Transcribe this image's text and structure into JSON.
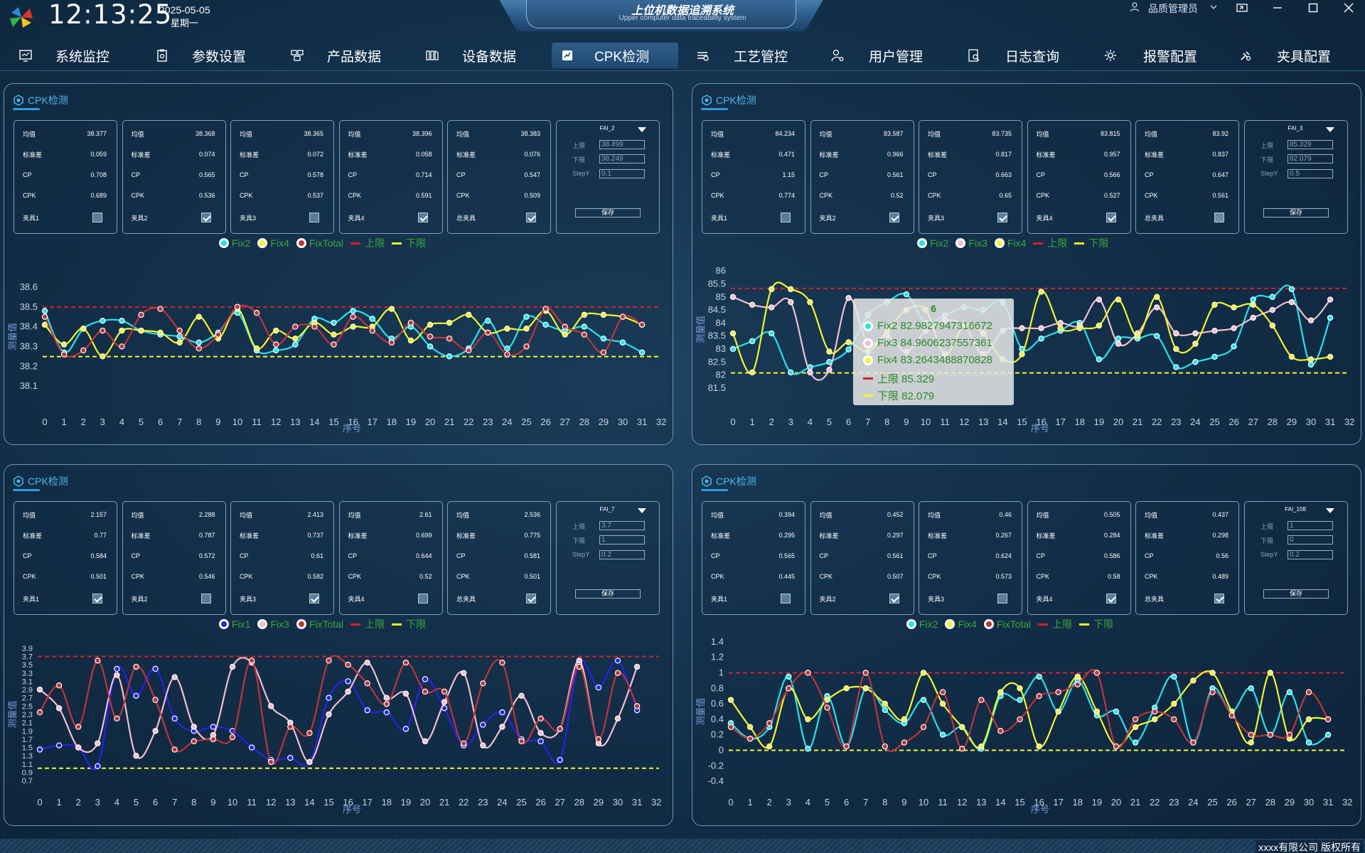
{
  "header": {
    "time": "12:13:25",
    "date": "2025-05-05",
    "weekday": "星期一",
    "title": "上位机数据追溯系统",
    "subtitle": "Upper computer data traceability system",
    "user": "品质管理员"
  },
  "nav": {
    "tabs": [
      {
        "label": "系统监控",
        "icon": "monitor-icon"
      },
      {
        "label": "参数设置",
        "icon": "clipboard-icon"
      },
      {
        "label": "产品数据",
        "icon": "product-icon"
      },
      {
        "label": "设备数据",
        "icon": "device-icon"
      },
      {
        "label": "CPK检测",
        "icon": "cpk-icon",
        "active": true
      },
      {
        "label": "工艺管控",
        "icon": "process-icon"
      },
      {
        "label": "用户管理",
        "icon": "user-settings-icon"
      },
      {
        "label": "日志查询",
        "icon": "log-search-icon"
      },
      {
        "label": "报警配置",
        "icon": "alarm-gear-icon"
      },
      {
        "label": "夹具配置",
        "icon": "fixture-icon"
      }
    ]
  },
  "labels": {
    "mean": "均值",
    "std": "标准差",
    "cp": "CP",
    "cpk": "CPK",
    "upper": "上限",
    "lower": "下限",
    "stepy": "StepY",
    "save": "保存",
    "xlabel": "序号",
    "ylabel": "测量值"
  },
  "footer": {
    "copyright": "xxxx有限公司 版权所有"
  },
  "panels": [
    {
      "title": "CPK检测",
      "stats": [
        {
          "mean": "38.377",
          "std": "0.059",
          "cp": "0.708",
          "cpk": "0.689",
          "fixture": "夹具1",
          "checked": false
        },
        {
          "mean": "38.368",
          "std": "0.074",
          "cp": "0.565",
          "cpk": "0.536",
          "fixture": "夹具2",
          "checked": true
        },
        {
          "mean": "38.365",
          "std": "0.072",
          "cp": "0.578",
          "cpk": "0.537",
          "fixture": "夹具3",
          "checked": false
        },
        {
          "mean": "38.396",
          "std": "0.058",
          "cp": "0.714",
          "cpk": "0.591",
          "fixture": "夹具4",
          "checked": true
        },
        {
          "mean": "38.383",
          "std": "0.076",
          "cp": "0.547",
          "cpk": "0.509",
          "fixture": "总夹具",
          "checked": true
        }
      ],
      "config": {
        "fai": "FAI_2",
        "upper": "38.499",
        "lower": "38.249",
        "stepy": "0.1"
      }
    },
    {
      "title": "CPK检测",
      "stats": [
        {
          "mean": "84.234",
          "std": "0.471",
          "cp": "1.15",
          "cpk": "0.774",
          "fixture": "夹具1",
          "checked": false
        },
        {
          "mean": "83.587",
          "std": "0.966",
          "cp": "0.561",
          "cpk": "0.52",
          "fixture": "夹具2",
          "checked": true
        },
        {
          "mean": "83.735",
          "std": "0.817",
          "cp": "0.663",
          "cpk": "0.65",
          "fixture": "夹具3",
          "checked": true
        },
        {
          "mean": "83.815",
          "std": "0.957",
          "cp": "0.566",
          "cpk": "0.527",
          "fixture": "夹具4",
          "checked": true
        },
        {
          "mean": "83.92",
          "std": "0.837",
          "cp": "0.647",
          "cpk": "0.561",
          "fixture": "总夹具",
          "checked": false,
          "partial": true
        }
      ],
      "config": {
        "fai": "FAI_3",
        "upper": "85.329",
        "lower": "82.079",
        "stepy": "0.5"
      },
      "tooltip": {
        "title": "6",
        "rows": [
          "Fix2  82.9827947316672",
          "Fix3  84.9606237557361",
          "Fix4  83.2643488870828",
          "上限  85.329",
          "下限  82.079"
        ]
      }
    },
    {
      "title": "CPK检测",
      "stats": [
        {
          "mean": "2.157",
          "std": "0.77",
          "cp": "0.584",
          "cpk": "0.501",
          "fixture": "夹具1",
          "checked": true
        },
        {
          "mean": "2.288",
          "std": "0.787",
          "cp": "0.572",
          "cpk": "0.546",
          "fixture": "夹具2",
          "checked": false
        },
        {
          "mean": "2.413",
          "std": "0.737",
          "cp": "0.61",
          "cpk": "0.582",
          "fixture": "夹具3",
          "checked": true
        },
        {
          "mean": "2.61",
          "std": "0.699",
          "cp": "0.644",
          "cpk": "0.52",
          "fixture": "夹具4",
          "checked": false
        },
        {
          "mean": "2.536",
          "std": "0.775",
          "cp": "0.581",
          "cpk": "0.501",
          "fixture": "总夹具",
          "checked": true
        }
      ],
      "config": {
        "fai": "FAI_7",
        "upper": "3.7",
        "lower": "1",
        "stepy": "0.2"
      }
    },
    {
      "title": "CPK检测",
      "stats": [
        {
          "mean": "0.394",
          "std": "0.295",
          "cp": "0.565",
          "cpk": "0.445",
          "fixture": "夹具1",
          "checked": false
        },
        {
          "mean": "0.452",
          "std": "0.297",
          "cp": "0.561",
          "cpk": "0.507",
          "fixture": "夹具2",
          "checked": true
        },
        {
          "mean": "0.46",
          "std": "0.267",
          "cp": "0.624",
          "cpk": "0.573",
          "fixture": "夹具3",
          "checked": false
        },
        {
          "mean": "0.505",
          "std": "0.284",
          "cp": "0.586",
          "cpk": "0.58",
          "fixture": "夹具4",
          "checked": true
        },
        {
          "mean": "0.437",
          "std": "0.298",
          "cp": "0.56",
          "cpk": "0.489",
          "fixture": "总夹具",
          "checked": true
        }
      ],
      "config": {
        "fai": "FAI_108",
        "upper": "1",
        "lower": "0",
        "stepy": "0.2"
      }
    }
  ],
  "chart_data": [
    {
      "type": "line",
      "xlabel": "序号",
      "ylabel": "测量值",
      "xlim": [
        0,
        32
      ],
      "ylim": [
        38.05,
        38.65
      ],
      "yticks": [
        38.1,
        38.2,
        38.3,
        38.4,
        38.5,
        38.6
      ],
      "xticks": [
        0,
        1,
        2,
        3,
        4,
        5,
        6,
        7,
        8,
        9,
        10,
        11,
        12,
        13,
        14,
        15,
        16,
        17,
        18,
        19,
        20,
        21,
        22,
        23,
        24,
        25,
        26,
        27,
        28,
        29,
        30,
        31,
        32
      ],
      "upper": 38.499,
      "lower": 38.249,
      "series": [
        {
          "name": "Fix2",
          "color": "#22e4f0",
          "values": [
            38.48,
            38.27,
            38.39,
            38.43,
            38.43,
            38.38,
            38.36,
            38.35,
            38.32,
            38.37,
            38.47,
            38.28,
            38.28,
            38.31,
            38.44,
            38.42,
            38.48,
            38.44,
            38.34,
            38.4,
            38.3,
            38.25,
            38.29,
            38.43,
            38.29,
            38.45,
            38.41,
            38.38,
            38.4,
            38.34,
            38.32,
            38.27
          ]
        },
        {
          "name": "Fix4",
          "color": "#f5f52a",
          "values": [
            38.41,
            38.31,
            38.39,
            38.25,
            38.38,
            38.38,
            38.37,
            38.32,
            38.45,
            38.34,
            38.49,
            38.29,
            38.38,
            38.34,
            38.42,
            38.36,
            38.4,
            38.4,
            38.49,
            38.33,
            38.41,
            38.42,
            38.46,
            38.37,
            38.39,
            38.39,
            38.48,
            38.36,
            38.46,
            38.46,
            38.45,
            38.41
          ]
        },
        {
          "name": "FixTotal",
          "color": "#c0343a",
          "values": [
            38.45,
            38.26,
            38.28,
            38.38,
            38.3,
            38.46,
            38.49,
            38.38,
            38.29,
            38.36,
            38.5,
            38.47,
            38.31,
            38.4,
            38.4,
            38.31,
            38.45,
            38.38,
            38.32,
            38.42,
            38.35,
            38.34,
            38.28,
            38.37,
            38.26,
            38.3,
            38.49,
            38.4,
            38.36,
            38.27,
            38.45,
            38.41
          ]
        }
      ]
    },
    {
      "type": "line",
      "xlabel": "序号",
      "ylabel": "测量值",
      "xlim": [
        0,
        32
      ],
      "ylim": [
        81.25,
        86.25
      ],
      "yticks": [
        81.5,
        82,
        82.5,
        83,
        83.5,
        84,
        84.5,
        85,
        85.5,
        86
      ],
      "xticks": [
        0,
        1,
        2,
        3,
        4,
        5,
        6,
        7,
        8,
        9,
        10,
        11,
        12,
        13,
        14,
        15,
        16,
        17,
        18,
        19,
        20,
        21,
        22,
        23,
        24,
        25,
        26,
        27,
        28,
        29,
        30,
        31,
        32
      ],
      "upper": 85.329,
      "lower": 82.079,
      "series": [
        {
          "name": "Fix2",
          "color": "#22e4f0",
          "values": [
            83.0,
            83.3,
            83.6,
            82.1,
            82.3,
            82.5,
            82.98,
            84.3,
            84.8,
            85.1,
            84.0,
            84.3,
            84.6,
            84.5,
            84.8,
            83.0,
            83.4,
            83.7,
            84.0,
            82.6,
            83.4,
            83.4,
            83.5,
            82.3,
            82.5,
            82.7,
            83.1,
            84.9,
            85.0,
            85.3,
            82.4,
            84.2
          ]
        },
        {
          "name": "Fix3",
          "color": "#f2bfd0",
          "values": [
            85.0,
            84.7,
            84.6,
            84.8,
            82.1,
            82.2,
            84.96,
            83.2,
            83.5,
            82.9,
            83.7,
            84.1,
            83.9,
            82.8,
            83.7,
            83.8,
            83.8,
            84.0,
            83.9,
            84.9,
            83.2,
            83.6,
            84.6,
            83.6,
            83.6,
            83.7,
            83.8,
            84.2,
            84.5,
            84.8,
            84.1,
            84.9
          ]
        },
        {
          "name": "Fix4",
          "color": "#f5f52a",
          "values": [
            83.6,
            82.1,
            85.3,
            85.3,
            84.8,
            82.9,
            83.26,
            82.9,
            83.7,
            84.5,
            84.5,
            82.8,
            83.9,
            83.6,
            82.6,
            82.8,
            85.2,
            83.8,
            83.8,
            83.9,
            84.9,
            83.5,
            85.0,
            83.0,
            83.2,
            84.7,
            84.6,
            84.7,
            83.9,
            82.7,
            82.6,
            82.7
          ]
        }
      ]
    },
    {
      "type": "line",
      "xlabel": "序号",
      "ylabel": "测量值",
      "xlim": [
        0,
        32
      ],
      "ylim": [
        0.6,
        4.0
      ],
      "yticks": [
        0.7,
        0.9,
        1.1,
        1.3,
        1.5,
        1.7,
        1.9,
        2.1,
        2.3,
        2.5,
        2.7,
        2.9,
        3.1,
        3.3,
        3.5,
        3.7,
        3.9
      ],
      "xticks": [
        0,
        1,
        2,
        3,
        4,
        5,
        6,
        7,
        8,
        9,
        10,
        11,
        12,
        13,
        14,
        15,
        16,
        17,
        18,
        19,
        20,
        21,
        22,
        23,
        24,
        25,
        26,
        27,
        28,
        29,
        30,
        31,
        32
      ],
      "upper": 3.7,
      "lower": 1.0,
      "series": [
        {
          "name": "Fix1",
          "color": "#2323ee",
          "values": [
            1.45,
            1.55,
            1.5,
            1.05,
            3.4,
            2.75,
            3.4,
            2.2,
            1.9,
            2.0,
            1.9,
            1.5,
            1.2,
            1.25,
            1.15,
            2.7,
            3.1,
            2.4,
            2.35,
            1.95,
            3.15,
            2.45,
            1.55,
            2.05,
            2.35,
            1.7,
            1.65,
            1.2,
            3.55,
            2.95,
            3.6,
            2.4
          ]
        },
        {
          "name": "Fix3",
          "color": "#f2bfd0",
          "values": [
            2.9,
            2.45,
            1.5,
            1.6,
            3.25,
            1.3,
            1.9,
            3.2,
            2.0,
            1.8,
            3.45,
            3.55,
            2.5,
            2.1,
            1.15,
            2.3,
            2.85,
            3.55,
            2.7,
            2.8,
            1.65,
            2.6,
            3.3,
            1.55,
            2.0,
            2.75,
            1.85,
            1.95,
            3.6,
            1.6,
            2.2,
            3.45
          ]
        },
        {
          "name": "FixTotal",
          "color": "#c0343a",
          "values": [
            2.35,
            3.0,
            2.0,
            3.6,
            2.2,
            3.45,
            2.65,
            1.45,
            1.65,
            1.7,
            1.75,
            3.6,
            1.15,
            2.0,
            1.85,
            3.6,
            3.5,
            3.05,
            2.55,
            3.55,
            2.85,
            2.85,
            1.6,
            3.05,
            3.55,
            1.65,
            2.2,
            1.95,
            3.45,
            1.7,
            3.3,
            2.5
          ]
        }
      ]
    },
    {
      "type": "line",
      "xlabel": "序号",
      "ylabel": "测量值",
      "xlim": [
        0,
        32
      ],
      "ylim": [
        -0.5,
        1.5
      ],
      "yticks": [
        -0.4,
        -0.2,
        0,
        0.2,
        0.4,
        0.6,
        0.8,
        1,
        1.2,
        1.4
      ],
      "xticks": [
        0,
        1,
        2,
        3,
        4,
        5,
        6,
        7,
        8,
        9,
        10,
        11,
        12,
        13,
        14,
        15,
        16,
        17,
        18,
        19,
        20,
        21,
        22,
        23,
        24,
        25,
        26,
        27,
        28,
        29,
        30,
        31,
        32
      ],
      "upper": 1.0,
      "lower": 0.0,
      "series": [
        {
          "name": "Fix2",
          "color": "#22e4f0",
          "values": [
            0.35,
            0.15,
            0.3,
            0.95,
            0.02,
            0.7,
            0.05,
            0.8,
            0.52,
            0.35,
            0.65,
            0.2,
            0.3,
            0.02,
            0.7,
            0.65,
            0.95,
            0.5,
            0.9,
            0.45,
            0.5,
            0.1,
            0.55,
            0.95,
            0.1,
            0.8,
            0.5,
            0.8,
            0.2,
            0.75,
            0.1,
            0.2
          ]
        },
        {
          "name": "Fix4",
          "color": "#f5f52a",
          "values": [
            0.65,
            0.3,
            0.05,
            0.8,
            0.4,
            0.65,
            0.8,
            0.8,
            0.6,
            0.4,
            1.0,
            0.6,
            0.3,
            0.05,
            0.75,
            0.8,
            0.05,
            0.5,
            0.95,
            0.5,
            0.05,
            0.3,
            0.4,
            0.6,
            0.9,
            1.0,
            0.5,
            0.1,
            1.0,
            0.15,
            0.4,
            0.4
          ]
        },
        {
          "name": "FixTotal",
          "color": "#c0343a",
          "values": [
            0.3,
            0.15,
            0.35,
            0.8,
            1.0,
            0.55,
            0.05,
            1.0,
            0.05,
            0.1,
            0.3,
            0.75,
            0.02,
            0.65,
            0.25,
            0.4,
            0.7,
            0.75,
            0.85,
            1.0,
            0.05,
            0.4,
            0.5,
            0.4,
            0.1,
            0.75,
            0.45,
            0.2,
            0.2,
            0.2,
            0.75,
            0.4
          ]
        }
      ]
    }
  ]
}
